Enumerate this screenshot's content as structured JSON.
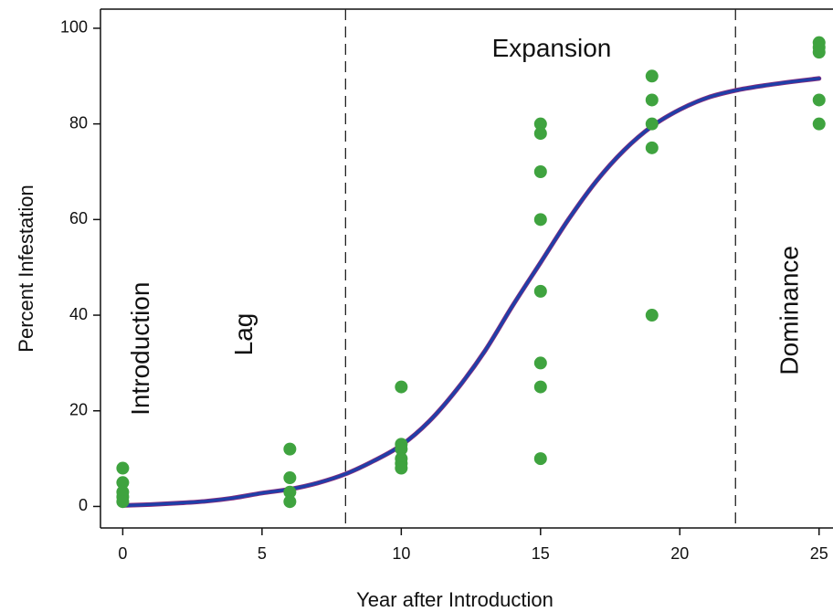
{
  "chart_data": {
    "type": "scatter",
    "title": "",
    "xlabel": "Year after Introduction",
    "ylabel": "Percent Infestation",
    "xlim": [
      -0.8,
      25.5
    ],
    "ylim": [
      -4.5,
      104
    ],
    "x_ticks": [
      0,
      5,
      10,
      15,
      20,
      25
    ],
    "y_ticks": [
      0,
      20,
      40,
      60,
      80,
      100
    ],
    "grid": false,
    "phase_boundaries": [
      8,
      22
    ],
    "phase_labels": [
      {
        "text": "Introduction",
        "x": 0.7,
        "y": 33,
        "orientation": "vertical"
      },
      {
        "text": "Lag",
        "x": 4.4,
        "y": 36,
        "orientation": "vertical"
      },
      {
        "text": "Expansion",
        "x": 15.4,
        "y": 95.5,
        "orientation": "horizontal"
      },
      {
        "text": "Dominance",
        "x": 24.0,
        "y": 41,
        "orientation": "vertical"
      }
    ],
    "points_color": "#3fa33f",
    "curve_color": "#1f3fa8",
    "curve_outline_color": "#8b2c7c",
    "points": [
      [
        0,
        8
      ],
      [
        0,
        5
      ],
      [
        0,
        3
      ],
      [
        0,
        2
      ],
      [
        0,
        1
      ],
      [
        6,
        12
      ],
      [
        6,
        6
      ],
      [
        6,
        3
      ],
      [
        6,
        1
      ],
      [
        10,
        25
      ],
      [
        10,
        13
      ],
      [
        10,
        12
      ],
      [
        10,
        10
      ],
      [
        10,
        9
      ],
      [
        10,
        8
      ],
      [
        15,
        80
      ],
      [
        15,
        78
      ],
      [
        15,
        70
      ],
      [
        15,
        60
      ],
      [
        15,
        45
      ],
      [
        15,
        30
      ],
      [
        15,
        25
      ],
      [
        15,
        10
      ],
      [
        19,
        90
      ],
      [
        19,
        85
      ],
      [
        19,
        80
      ],
      [
        19,
        75
      ],
      [
        19,
        40
      ],
      [
        25,
        97
      ],
      [
        25,
        96
      ],
      [
        25,
        95
      ],
      [
        25,
        85
      ],
      [
        25,
        80
      ]
    ],
    "curve": {
      "x": [
        0,
        1,
        2,
        3,
        4,
        5,
        6,
        7,
        8,
        9,
        10,
        11,
        12,
        13,
        14,
        15,
        16,
        17,
        18,
        19,
        20,
        21,
        22,
        23,
        24,
        25
      ],
      "y": [
        0.2,
        0.4,
        0.7,
        1.1,
        1.8,
        2.8,
        3.6,
        4.9,
        6.8,
        9.5,
        12.8,
        17.8,
        24.5,
        32.5,
        42.0,
        51.0,
        60.0,
        68.0,
        74.5,
        79.5,
        83.0,
        85.5,
        87.0,
        88.0,
        88.8,
        89.5
      ]
    }
  }
}
